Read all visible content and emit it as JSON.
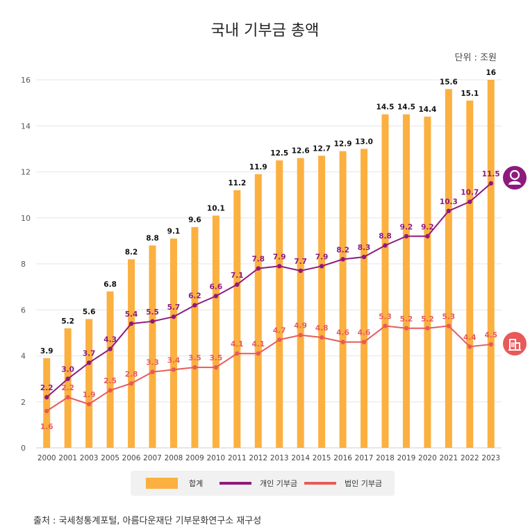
{
  "title": "국내 기부금 총액",
  "unit_label": "단위 : 조원",
  "source": "출처 : 국세청통계포털,  아름다운재단 기부문화연구소 재구성",
  "colors": {
    "total": "#fbb040",
    "individual": "#8e1a7e",
    "corporate": "#e85a5a"
  },
  "icons": {
    "individual": "person-icon",
    "corporate": "building-icon"
  },
  "chart_data": {
    "type": "bar",
    "title": "국내 기부금 총액",
    "ylabel": "조원",
    "ylim": [
      0,
      16
    ],
    "yticks": [
      "0",
      "2",
      "4",
      "6",
      "8",
      "10",
      "12",
      "14",
      "16"
    ],
    "categories": [
      "2000",
      "2001",
      "2003",
      "2005",
      "2006",
      "2007",
      "2008",
      "2009",
      "2010",
      "2011",
      "2012",
      "2013",
      "2014",
      "2015",
      "2016",
      "2017",
      "2018",
      "2019",
      "2020",
      "2021",
      "2022",
      "2023"
    ],
    "series": [
      {
        "name": "합계",
        "type": "bar",
        "values": [
          3.9,
          5.2,
          5.6,
          6.8,
          8.2,
          8.8,
          9.1,
          9.6,
          10.1,
          11.2,
          11.9,
          12.5,
          12.6,
          12.7,
          12.9,
          13.0,
          14.5,
          14.5,
          14.4,
          15.6,
          15.1,
          16
        ],
        "labels": [
          "3.9",
          "5.2",
          "5.6",
          "6.8",
          "8.2",
          "8.8",
          "9.1",
          "9.6",
          "10.1",
          "11.2",
          "11.9",
          "12.5",
          "12.6",
          "12.7",
          "12.9",
          "13.0",
          "14.5",
          "14.5",
          "14.4",
          "15.6",
          "15.1",
          "16"
        ]
      },
      {
        "name": "개인 기부금",
        "type": "line",
        "values": [
          2.2,
          3.0,
          3.7,
          4.3,
          5.4,
          5.5,
          5.7,
          6.2,
          6.6,
          7.1,
          7.8,
          7.9,
          7.7,
          7.9,
          8.2,
          8.3,
          8.8,
          9.2,
          9.2,
          10.3,
          10.7,
          11.5
        ],
        "labels": [
          "2.2",
          "3.0",
          "3.7",
          "4.3",
          "5.4",
          "5.5",
          "5.7",
          "6.2",
          "6.6",
          "7.1",
          "7.8",
          "7.9",
          "7.7",
          "7.9",
          "8.2",
          "8.3",
          "8.8",
          "9.2",
          "9.2",
          "10.3",
          "10.7",
          "11.5"
        ]
      },
      {
        "name": "법인 기부금",
        "type": "line",
        "values": [
          1.6,
          2.2,
          1.9,
          2.5,
          2.8,
          3.3,
          3.4,
          3.5,
          3.5,
          4.1,
          4.1,
          4.7,
          4.9,
          4.8,
          4.6,
          4.6,
          5.3,
          5.2,
          5.2,
          5.3,
          4.4,
          4.5
        ],
        "labels": [
          "1.6",
          "2.2",
          "1.9",
          "2.5",
          "2.8",
          "3.3",
          "3.4",
          "3.5",
          "3.5",
          "4.1",
          "4.1",
          "4.7",
          "4.9",
          "4.8",
          "4.6",
          "4.6",
          "5.3",
          "5.2",
          "5.2",
          "5.3",
          "4.4",
          "4.5"
        ]
      }
    ],
    "legend": [
      "합계",
      "개인 기부금",
      "법인 기부금"
    ],
    "legend_position": "bottom"
  }
}
